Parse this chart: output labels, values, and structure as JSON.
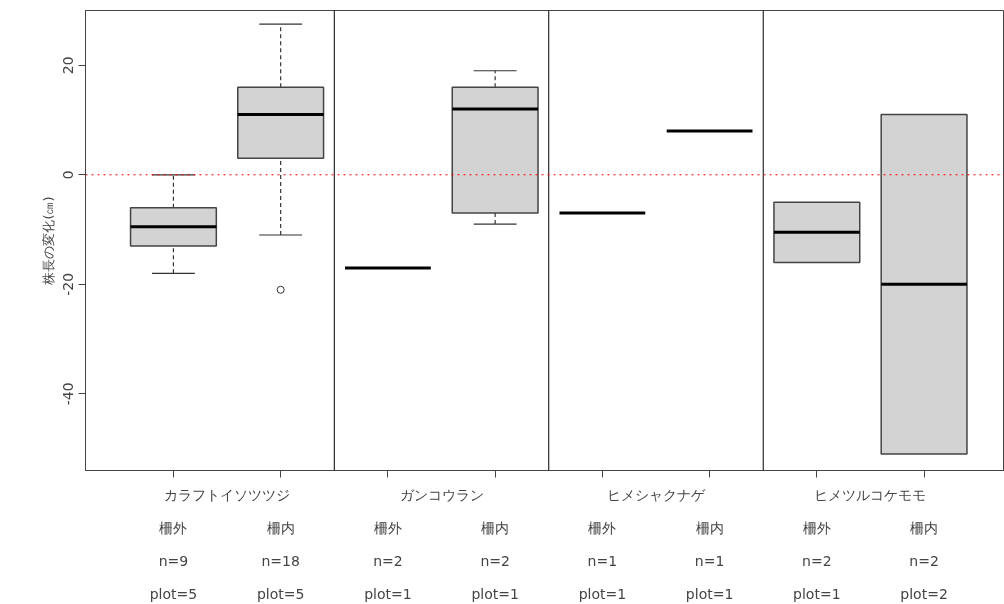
{
  "chart_data": {
    "type": "box",
    "ylabel": "株長の変化(㎝)",
    "categories": [
      "柵外",
      "柵内",
      "柵外",
      "柵内",
      "柵外",
      "柵内",
      "柵外",
      "柵内"
    ],
    "ylim": [
      -54,
      30
    ],
    "yticks": [
      -40,
      -20,
      0,
      20
    ],
    "colors": [
      "#d3d3d3",
      "#d3d3d3",
      "#000000",
      "#d3d3d3",
      "#000000",
      "#000000",
      "#d3d3d3",
      "#d3d3d3"
    ],
    "boxes": [
      {
        "low": -18,
        "q1": -13,
        "median": -9.5,
        "q3": -6,
        "high": 0
      },
      {
        "low": -11,
        "q1": 3,
        "median": 11,
        "q3": 16,
        "high": 27.5,
        "outliers": [
          -21
        ]
      },
      {
        "low": -17,
        "q1": -17,
        "median": -17,
        "q3": -17,
        "high": -17
      },
      {
        "low": -9,
        "q1": -7,
        "median": 12,
        "q3": 16,
        "high": 19
      },
      {
        "low": -7,
        "q1": -7,
        "median": -7,
        "q3": -7,
        "high": -7
      },
      {
        "low": 8,
        "q1": 8,
        "median": 8,
        "q3": 8,
        "high": 8
      },
      {
        "low": -16,
        "q1": -16,
        "median": -10.5,
        "q3": -5,
        "high": -5
      },
      {
        "low": -51,
        "q1": -51,
        "median": -20,
        "q3": 11,
        "high": 11
      }
    ],
    "ref_lines": [
      {
        "axis": "y",
        "value": 0,
        "color": "#ff0000",
        "line_style": "dotted"
      }
    ],
    "annotations": [
      "カラフトイソツツジ",
      "ガンコウラン",
      "ヒメシャクナゲ",
      "ヒメツルコケモモ",
      "n=9",
      "n=18",
      "n=2",
      "n=2",
      "n=1",
      "n=1",
      "n=2",
      "n=2",
      "plot=5",
      "plot=5",
      "plot=1",
      "plot=1",
      "plot=1",
      "plot=1",
      "plot=1",
      "plot=2"
    ],
    "grid": false
  }
}
